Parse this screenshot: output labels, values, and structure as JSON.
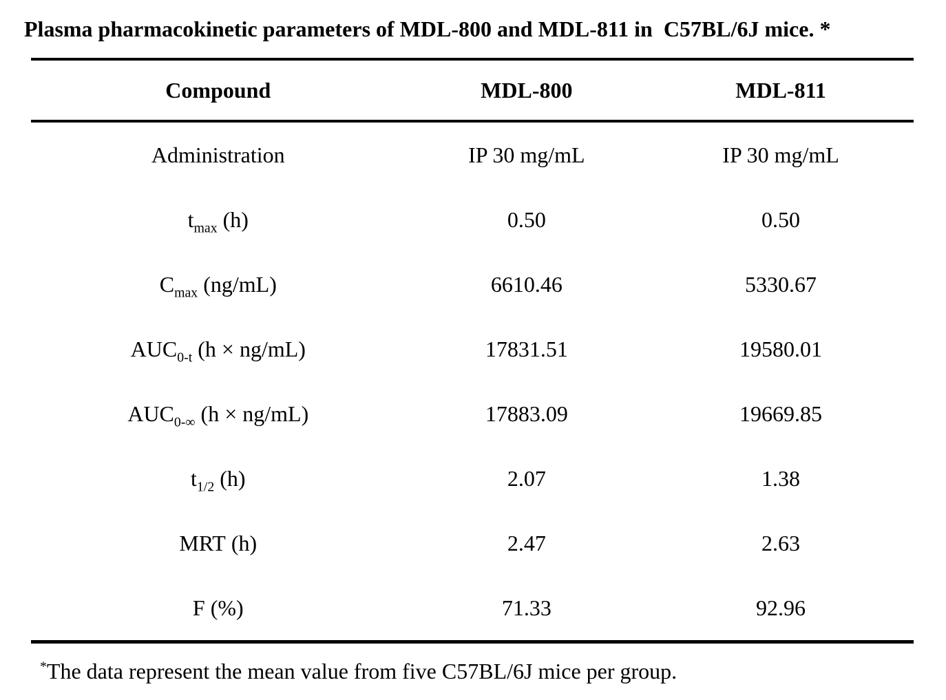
{
  "title": "Plasma pharmacokinetic parameters of MDL-800 and MDL-811 in  C57BL/6J mice. *",
  "table": {
    "header": {
      "col1": "Compound",
      "col2": "MDL-800",
      "col3": "MDL-811"
    },
    "rows": [
      {
        "label": {
          "pre": "Administration",
          "sub": "",
          "post": ""
        },
        "mdl800": "IP 30 mg/mL",
        "mdl811": "IP 30 mg/mL"
      },
      {
        "label": {
          "pre": "t",
          "sub": "max",
          "post": " (h)"
        },
        "mdl800": "0.50",
        "mdl811": "0.50"
      },
      {
        "label": {
          "pre": "C",
          "sub": "max",
          "post": " (ng/mL)"
        },
        "mdl800": "6610.46",
        "mdl811": "5330.67"
      },
      {
        "label": {
          "pre": "AUC",
          "sub": "0-t",
          "post": " (h × ng/mL)"
        },
        "mdl800": "17831.51",
        "mdl811": "19580.01"
      },
      {
        "label": {
          "pre": "AUC",
          "sub": "0-∞",
          "post": " (h × ng/mL)"
        },
        "mdl800": "17883.09",
        "mdl811": "19669.85"
      },
      {
        "label": {
          "pre": "t",
          "sub": "1/2",
          "post": " (h)"
        },
        "mdl800": "2.07",
        "mdl811": "1.38"
      },
      {
        "label": {
          "pre": "MRT",
          "sub": "",
          "post": " (h)"
        },
        "mdl800": "2.47",
        "mdl811": "2.63"
      },
      {
        "label": {
          "pre": "F",
          "sub": "",
          "post": " (%)"
        },
        "mdl800": "71.33",
        "mdl811": "92.96"
      }
    ]
  },
  "footnote": {
    "marker": "*",
    "text": "The data represent the mean value from five C57BL/6J mice per group."
  },
  "chart_data": {
    "type": "table",
    "title": "Plasma pharmacokinetic parameters of MDL-800 and MDL-811 in C57BL/6J mice.",
    "columns": [
      "Compound",
      "MDL-800",
      "MDL-811"
    ],
    "rows": [
      [
        "Administration",
        "IP 30 mg/mL",
        "IP 30 mg/mL"
      ],
      [
        "tmax (h)",
        0.5,
        0.5
      ],
      [
        "Cmax (ng/mL)",
        6610.46,
        5330.67
      ],
      [
        "AUC0-t (h × ng/mL)",
        17831.51,
        19580.01
      ],
      [
        "AUC0-∞ (h × ng/mL)",
        17883.09,
        19669.85
      ],
      [
        "t1/2 (h)",
        2.07,
        1.38
      ],
      [
        "MRT (h)",
        2.47,
        2.63
      ],
      [
        "F (%)",
        71.33,
        92.96
      ]
    ],
    "footnote": "*The data represent the mean value from five C57BL/6J mice per group."
  }
}
